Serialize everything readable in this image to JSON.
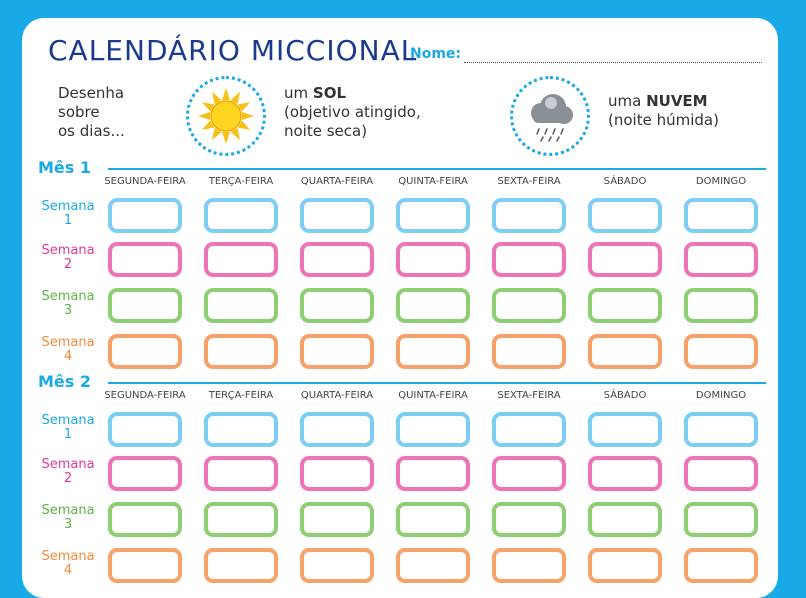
{
  "header": {
    "title": "CALENDÁRIO MICCIONAL",
    "name_label": "Nome:"
  },
  "legend": {
    "intro": [
      "Desenha",
      "sobre",
      "os dias..."
    ],
    "sun": {
      "line1_pre": "um ",
      "line1_bold": "SOL",
      "line2": "(objetivo atingido,",
      "line3": "noite seca)",
      "icon": "sun-icon"
    },
    "cloud": {
      "line1_pre": "uma ",
      "line1_bold": "NUVEM",
      "line2": "(noite húmida)",
      "icon": "rain-cloud-icon"
    }
  },
  "days": [
    "SEGUNDA-FEIRA",
    "TERÇA-FEIRA",
    "QUARTA-FEIRA",
    "QUINTA-FEIRA",
    "SEXTA-FEIRA",
    "SÁBADO",
    "DOMINGO"
  ],
  "weeks": [
    {
      "label": "Semana",
      "number": "1",
      "color": "#7ecdf2"
    },
    {
      "label": "Semana",
      "number": "2",
      "color": "#ee74b8"
    },
    {
      "label": "Semana",
      "number": "3",
      "color": "#8fcf74"
    },
    {
      "label": "Semana",
      "number": "4",
      "color": "#f5a36b"
    }
  ],
  "week_label_colors": [
    "#19a9e6",
    "#e0399a",
    "#5db445",
    "#f08a3c"
  ],
  "months": [
    {
      "label": "Mês 1"
    },
    {
      "label": "Mês 2"
    }
  ],
  "colors": {
    "accent": "#19a9e6",
    "title": "#1b3a8f"
  }
}
